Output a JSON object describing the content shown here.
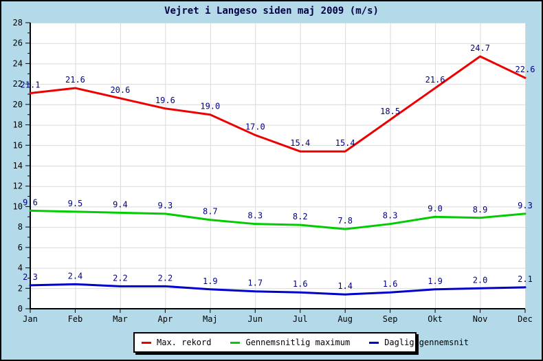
{
  "chart_data": {
    "type": "line",
    "title": "Vejret i Langeso siden maj 2009 (m/s)",
    "categories": [
      "Jan",
      "Feb",
      "Mar",
      "Apr",
      "Maj",
      "Jun",
      "Jul",
      "Aug",
      "Sep",
      "Okt",
      "Nov",
      "Dec"
    ],
    "series": [
      {
        "name": "Max. rekord",
        "color": "#ee0000",
        "values": [
          21.1,
          21.6,
          20.6,
          19.6,
          19.0,
          17.0,
          15.4,
          15.4,
          18.5,
          21.6,
          24.7,
          22.6
        ]
      },
      {
        "name": "Gennemsnitlig maximum",
        "color": "#00cc00",
        "values": [
          9.6,
          9.5,
          9.4,
          9.3,
          8.7,
          8.3,
          8.2,
          7.8,
          8.3,
          9.0,
          8.9,
          9.3
        ]
      },
      {
        "name": "Daglig gennemsnit",
        "color": "#0000cc",
        "values": [
          2.3,
          2.4,
          2.2,
          2.2,
          1.9,
          1.7,
          1.6,
          1.4,
          1.6,
          1.9,
          2.0,
          2.1
        ]
      }
    ],
    "ylim": [
      0,
      28
    ],
    "y_major_step": 2,
    "y_minor_step": 1,
    "grid": true,
    "legend_position": "bottom",
    "colors": {
      "background": "#b4d9e8",
      "plot_background": "#ffffff",
      "gridline": "#d9d9d9",
      "axis": "#000000",
      "title": "#000044",
      "tick_label": "#000000",
      "data_label": "#000080"
    }
  }
}
